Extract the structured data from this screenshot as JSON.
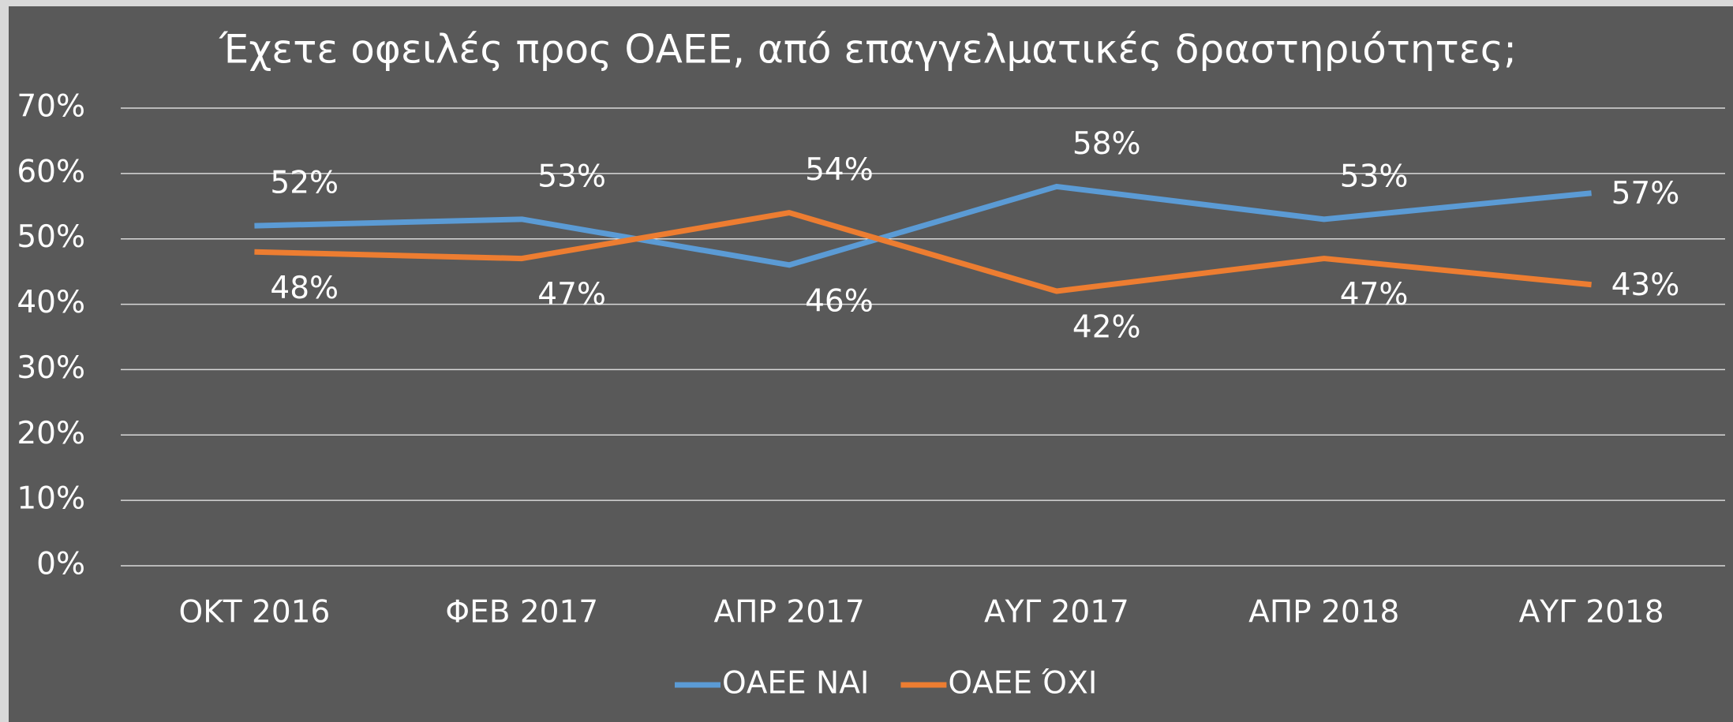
{
  "chart_data": {
    "type": "line",
    "title": "Έχετε οφειλές προς ΟΑΕΕ, από επαγγελματικές δραστηριότητες;",
    "categories": [
      "ΟΚΤ 2016",
      "ΦΕΒ 2017",
      "ΑΠΡ 2017",
      "ΑΥΓ 2017",
      "ΑΠΡ 2018",
      "ΑΥΓ 2018"
    ],
    "series": [
      {
        "name": "ΟΑΕΕ ΝΑΙ",
        "color": "#5b9bd5",
        "values": [
          52,
          53,
          46,
          58,
          53,
          57
        ],
        "value_labels": [
          "52%",
          "53%",
          "46%",
          "58%",
          "53%",
          "57%"
        ]
      },
      {
        "name": "ΟΑΕΕ ΌΧΙ",
        "color": "#ed7d31",
        "values": [
          48,
          47,
          54,
          42,
          47,
          43
        ],
        "value_labels": [
          "48%",
          "47%",
          "54%",
          "42%",
          "47%",
          "43%"
        ]
      }
    ],
    "ylim": [
      0,
      70
    ],
    "yticks": [
      {
        "value": 0,
        "label": "0%"
      },
      {
        "value": 10,
        "label": "10%"
      },
      {
        "value": 20,
        "label": "20%"
      },
      {
        "value": 30,
        "label": "30%"
      },
      {
        "value": 40,
        "label": "40%"
      },
      {
        "value": 50,
        "label": "50%"
      },
      {
        "value": 60,
        "label": "60%"
      },
      {
        "value": 70,
        "label": "70%"
      }
    ],
    "grid": true,
    "legend": "bottom"
  }
}
